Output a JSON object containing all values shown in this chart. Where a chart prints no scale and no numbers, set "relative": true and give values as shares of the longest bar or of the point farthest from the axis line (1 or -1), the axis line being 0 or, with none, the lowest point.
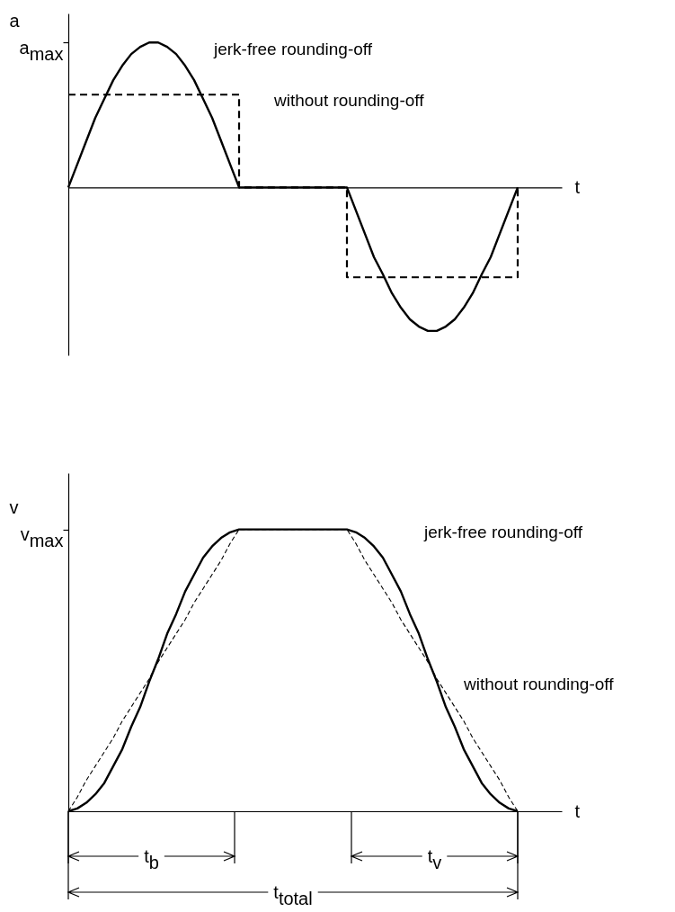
{
  "chart_data": [
    {
      "type": "line",
      "relative": true,
      "xlabel": "t",
      "ylabel": "a",
      "annotations": [
        "a$_{max}$"
      ],
      "categories": [
        null,
        null,
        null,
        null,
        null,
        null,
        null,
        null,
        null,
        null,
        null,
        null,
        null,
        null,
        null,
        null,
        null,
        null,
        null,
        null,
        null,
        null,
        null,
        null,
        null,
        null,
        null,
        null,
        null,
        null,
        null,
        null,
        null,
        null,
        null,
        null,
        null,
        null,
        null,
        null,
        null,
        null,
        null,
        null,
        null,
        null,
        null,
        null,
        null,
        null,
        null
      ],
      "series": [
        {
          "name": "jerk-free rounding-off",
          "color": "#000000",
          "values": [
            0,
            0.16,
            0.32,
            0.48,
            0.61,
            0.74,
            0.84,
            0.92,
            0.97,
            1,
            1,
            0.97,
            0.92,
            0.84,
            0.74,
            0.61,
            0.48,
            0.32,
            0.16,
            0,
            0,
            0,
            0,
            0,
            0,
            0,
            0,
            0,
            0,
            0,
            0,
            0,
            -0.16,
            -0.32,
            -0.48,
            -0.6,
            -0.73,
            -0.83,
            -0.91,
            -0.96,
            -0.99,
            -0.99,
            -0.96,
            -0.91,
            -0.83,
            -0.73,
            -0.6,
            -0.48,
            -0.32,
            -0.16,
            0
          ]
        },
        {
          "name": "without rounding-off",
          "type": "step",
          "line_style": "dashed",
          "color": "#000000",
          "values": [
            0.64,
            0.64,
            0.64,
            0.64,
            0.64,
            0.64,
            0.64,
            0.64,
            0.64,
            0.64,
            0.64,
            0.64,
            0.64,
            0.64,
            0.64,
            0.64,
            0.64,
            0.64,
            0.64,
            0,
            0,
            0,
            0,
            0,
            0,
            0,
            0,
            0,
            0,
            0,
            0,
            -0.62,
            -0.62,
            -0.62,
            -0.62,
            -0.62,
            -0.62,
            -0.62,
            -0.62,
            -0.62,
            -0.62,
            -0.62,
            -0.62,
            -0.62,
            -0.62,
            -0.62,
            -0.62,
            -0.62,
            -0.62,
            -0.62,
            0
          ]
        }
      ]
    },
    {
      "type": "line",
      "relative": true,
      "xlabel": "t",
      "ylabel": "v",
      "annotations": [
        "v$_{max}$",
        "t$_{b}$",
        "t$_{v}$",
        "t$_{total}$"
      ],
      "categories": [
        null,
        null,
        null,
        null,
        null,
        null,
        null,
        null,
        null,
        null,
        null,
        null,
        null,
        null,
        null,
        null,
        null,
        null,
        null,
        null,
        null,
        null,
        null,
        null,
        null,
        null,
        null,
        null,
        null,
        null,
        null,
        null,
        null,
        null,
        null,
        null,
        null,
        null,
        null,
        null,
        null,
        null,
        null,
        null,
        null,
        null,
        null,
        null,
        null,
        null,
        null
      ],
      "series": [
        {
          "name": "jerk-free rounding-off",
          "color": "#000000",
          "values": [
            0,
            0.01,
            0.03,
            0.06,
            0.1,
            0.16,
            0.22,
            0.3,
            0.37,
            0.46,
            0.54,
            0.63,
            0.7,
            0.78,
            0.84,
            0.9,
            0.94,
            0.97,
            0.99,
            1,
            1,
            1,
            1,
            1,
            1,
            1,
            1,
            1,
            1,
            1,
            1,
            1,
            0.99,
            0.97,
            0.94,
            0.9,
            0.84,
            0.78,
            0.7,
            0.63,
            0.54,
            0.46,
            0.37,
            0.3,
            0.22,
            0.16,
            0.1,
            0.06,
            0.03,
            0.01,
            0
          ]
        },
        {
          "name": "without rounding-off",
          "line_style": "dashed",
          "color": "#000000",
          "values": [
            0,
            0.05,
            0.11,
            0.16,
            0.21,
            0.26,
            0.32,
            0.37,
            0.42,
            0.47,
            0.53,
            0.58,
            0.63,
            0.68,
            0.74,
            0.79,
            0.84,
            0.89,
            0.95,
            1,
            1,
            1,
            1,
            1,
            1,
            1,
            1,
            1,
            1,
            1,
            1,
            1,
            0.95,
            0.89,
            0.84,
            0.79,
            0.74,
            0.68,
            0.63,
            0.58,
            0.53,
            0.47,
            0.42,
            0.37,
            0.32,
            0.26,
            0.21,
            0.16,
            0.11,
            0.05,
            0
          ]
        }
      ]
    }
  ]
}
